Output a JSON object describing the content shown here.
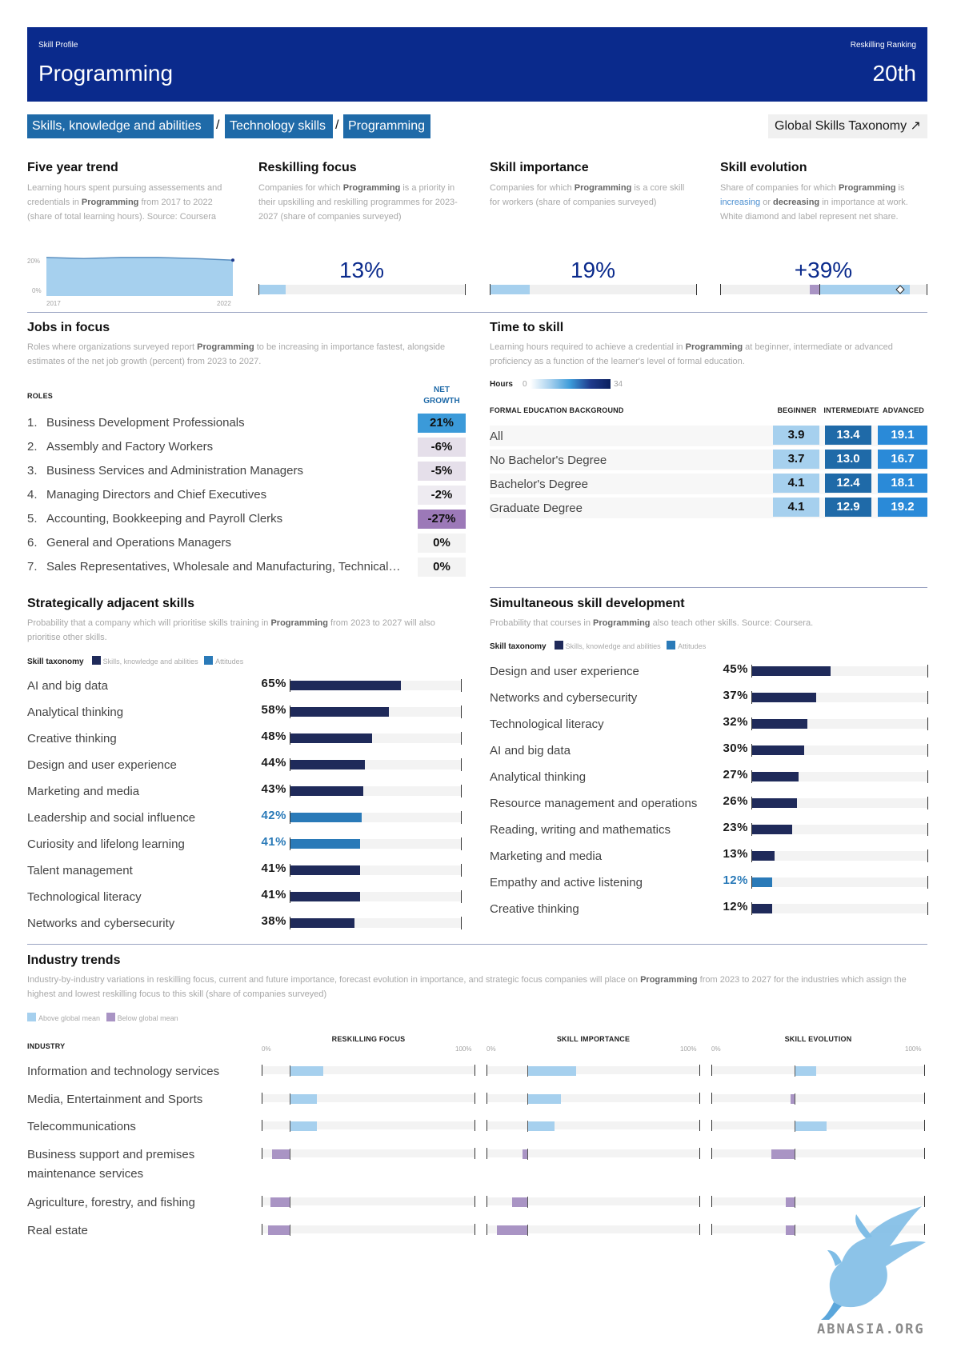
{
  "header": {
    "left_small": "Skill Profile",
    "title": "Programming",
    "right_small": "Reskilling Ranking",
    "rank": "20th"
  },
  "breadcrumb": {
    "items": [
      "Skills, knowledge and abilities",
      "Technology skills",
      "Programming"
    ],
    "separator": "/",
    "taxonomy_link": "Global Skills Taxonomy ↗"
  },
  "colors": {
    "navy": "#0a2a8c",
    "dark_bar": "#1f2a5a",
    "attitude_bar": "#2a7ab8",
    "light_blue": "#a6d0ee",
    "purple": "#a994c4"
  },
  "five_year_trend": {
    "title": "Five year trend",
    "desc_pre": "Learning hours spent pursuing assessements and credentials in ",
    "skill": "Programming",
    "desc_post": " from 2017 to 2022 (share of total learning hours). Source: Coursera",
    "y_top": "20%",
    "y_bottom": "0%",
    "x_start": "2017",
    "x_end": "2022",
    "chart_data": {
      "type": "area",
      "x": [
        2017,
        2018,
        2019,
        2020,
        2021,
        2022
      ],
      "values": [
        0.185,
        0.18,
        0.185,
        0.185,
        0.18,
        0.172
      ],
      "ylim": [
        0,
        0.2
      ]
    }
  },
  "reskilling_focus": {
    "title": "Reskilling focus",
    "desc_pre": "Companies for which ",
    "skill": "Programming",
    "desc_post": " is a priority in their upskilling and reskilling programmes for 2023-2027 (share of companies surveyed)",
    "value_label": "13%",
    "value": 0.13
  },
  "skill_importance": {
    "title": "Skill importance",
    "desc_pre": "Companies for which ",
    "skill": "Programming",
    "desc_post": " is a core skill for workers (share of companies surveyed)",
    "value_label": "19%",
    "value": 0.19
  },
  "skill_evolution": {
    "title": "Skill evolution",
    "desc_pre": "Share of companies for which ",
    "skill": "Programming",
    "desc_mid1": " is ",
    "increasing": "increasing",
    "desc_mid2": " or ",
    "decreasing": "decreasing",
    "desc_post": " in importance at work. White diamond and label represent net share.",
    "value_label": "+39%",
    "decreasing_share": 0.05,
    "increasing_share": 0.44,
    "net": 0.39
  },
  "jobs_in_focus": {
    "title": "Jobs in focus",
    "desc_pre": "Roles where organizations surveyed report ",
    "skill": "Programming",
    "desc_post": " to be increasing in importance fastest, alongside estimates of the net job growth (percent) from 2023 to 2027.",
    "roles_header": "ROLES",
    "growth_header_1": "NET",
    "growth_header_2": "GROWTH",
    "rows": [
      {
        "num": "1.",
        "role": "Business Development Professionals",
        "growth": "21%",
        "bg": "#3b9ad9"
      },
      {
        "num": "2.",
        "role": "Assembly and Factory Workers",
        "growth": "-6%",
        "bg": "#e5dfea"
      },
      {
        "num": "3.",
        "role": "Business Services and Administration Managers",
        "growth": "-5%",
        "bg": "#e5dfea"
      },
      {
        "num": "4.",
        "role": "Managing Directors and Chief Executives",
        "growth": "-2%",
        "bg": "#eeebf1"
      },
      {
        "num": "5.",
        "role": "Accounting, Bookkeeping and Payroll Clerks",
        "growth": "-27%",
        "bg": "#9c79b8"
      },
      {
        "num": "6.",
        "role": "General and Operations Managers",
        "growth": "0%",
        "bg": "#f3f3f3"
      },
      {
        "num": "7.",
        "role": "Sales Representatives, Wholesale and Manufacturing, Technical…",
        "growth": "0%",
        "bg": "#f3f3f3"
      }
    ]
  },
  "time_to_skill": {
    "title": "Time to skill",
    "desc_pre": "Learning hours required to achieve a credential in ",
    "skill": "Programming",
    "desc_post": " at beginner, intermediate or advanced proficiency as a function of the learner's level of formal education.",
    "hours_label": "Hours",
    "hours_min": "0",
    "hours_max": "34",
    "background_header": "FORMAL EDUCATION BACKGROUND",
    "col_beginner": "BEGINNER",
    "col_intermediate": "INTERMEDIATE",
    "col_advanced": "ADVANCED",
    "rows": [
      {
        "label": "All",
        "beginner": "3.9",
        "intermediate": "13.4",
        "advanced": "19.1"
      },
      {
        "label": "No Bachelor's Degree",
        "beginner": "3.7",
        "intermediate": "13.0",
        "advanced": "16.7"
      },
      {
        "label": "Bachelor's Degree",
        "beginner": "4.1",
        "intermediate": "12.4",
        "advanced": "18.1"
      },
      {
        "label": "Graduate Degree",
        "beginner": "4.1",
        "intermediate": "12.9",
        "advanced": "19.2"
      }
    ]
  },
  "strategic_skills": {
    "title": "Strategically adjacent skills",
    "desc_pre": "Probability that a company which will prioritise skills training in ",
    "skill": "Programming",
    "desc_post": " from 2023 to 2027 will also prioritise other skills.",
    "legend_title": "Skill taxonomy",
    "legend_1": "Skills, knowledge and abilities",
    "legend_2": "Attitudes",
    "chart_data": {
      "type": "bar",
      "rows": [
        {
          "label": "AI and big data",
          "value": 65,
          "text": "65%",
          "kind": "skill"
        },
        {
          "label": "Analytical thinking",
          "value": 58,
          "text": "58%",
          "kind": "skill"
        },
        {
          "label": "Creative thinking",
          "value": 48,
          "text": "48%",
          "kind": "skill"
        },
        {
          "label": "Design and user experience",
          "value": 44,
          "text": "44%",
          "kind": "skill"
        },
        {
          "label": "Marketing and media",
          "value": 43,
          "text": "43%",
          "kind": "skill"
        },
        {
          "label": "Leadership and social influence",
          "value": 42,
          "text": "42%",
          "kind": "attitude"
        },
        {
          "label": "Curiosity and lifelong learning",
          "value": 41,
          "text": "41%",
          "kind": "attitude"
        },
        {
          "label": "Talent management",
          "value": 41,
          "text": "41%",
          "kind": "skill"
        },
        {
          "label": "Technological literacy",
          "value": 41,
          "text": "41%",
          "kind": "skill"
        },
        {
          "label": "Networks and cybersecurity",
          "value": 38,
          "text": "38%",
          "kind": "skill"
        }
      ]
    }
  },
  "simultaneous_skills": {
    "title": "Simultaneous skill development",
    "desc_pre": "Probability that courses in ",
    "skill": "Programming",
    "desc_post": " also teach other skills. Source: Coursera.",
    "legend_title": "Skill taxonomy",
    "legend_1": "Skills, knowledge and abilities",
    "legend_2": "Attitudes",
    "chart_data": {
      "type": "bar",
      "rows": [
        {
          "label": "Design and user experience",
          "value": 45,
          "text": "45%",
          "kind": "skill"
        },
        {
          "label": "Networks and cybersecurity",
          "value": 37,
          "text": "37%",
          "kind": "skill"
        },
        {
          "label": "Technological literacy",
          "value": 32,
          "text": "32%",
          "kind": "skill"
        },
        {
          "label": "AI and big data",
          "value": 30,
          "text": "30%",
          "kind": "skill"
        },
        {
          "label": "Analytical thinking",
          "value": 27,
          "text": "27%",
          "kind": "skill"
        },
        {
          "label": "Resource management and operations",
          "value": 26,
          "text": "26%",
          "kind": "skill"
        },
        {
          "label": "Reading, writing and mathematics",
          "value": 23,
          "text": "23%",
          "kind": "skill"
        },
        {
          "label": "Marketing and media",
          "value": 13,
          "text": "13%",
          "kind": "skill"
        },
        {
          "label": "Empathy and active listening",
          "value": 12,
          "text": "12%",
          "kind": "attitude"
        },
        {
          "label": "Creative thinking",
          "value": 12,
          "text": "12%",
          "kind": "skill"
        }
      ]
    }
  },
  "industry_trends": {
    "title": "Industry trends",
    "desc_pre": "Industry-by-industry variations in reskilling focus, current and future importance, forecast evolution in importance, and strategic focus companies will place on ",
    "skill": "Programming",
    "desc_post": " from 2023 to 2027 for the industries which assign the highest and lowest reskilling focus to this skill (share of companies surveyed)",
    "legend_above": "Above global mean",
    "legend_below": "Below global mean",
    "industry_header": "INDUSTRY",
    "col_1": "RESKILLING FOCUS",
    "col_2": "SKILL IMPORTANCE",
    "col_3": "SKILL EVOLUTION",
    "axis_min": "0%",
    "axis_max": "100%",
    "global_means": {
      "reskilling_focus": 0.13,
      "skill_importance": 0.19,
      "skill_evolution": 0.39
    },
    "rows": [
      {
        "label": "Information and technology services",
        "values": [
          0.29,
          0.42,
          0.49
        ]
      },
      {
        "label": "Media, Entertainment and Sports",
        "values": [
          0.26,
          0.35,
          0.37
        ]
      },
      {
        "label": "Telecommunications",
        "values": [
          0.26,
          0.32,
          0.54
        ]
      },
      {
        "label": "Business support and premises maintenance services",
        "values": [
          0.05,
          0.17,
          0.28
        ]
      },
      {
        "label": "Agriculture, forestry, and fishing",
        "values": [
          0.04,
          0.12,
          0.35
        ]
      },
      {
        "label": "Real estate",
        "values": [
          0.03,
          0.05,
          0.35
        ]
      }
    ]
  },
  "watermark": {
    "text": "ABNASIA.ORG"
  }
}
